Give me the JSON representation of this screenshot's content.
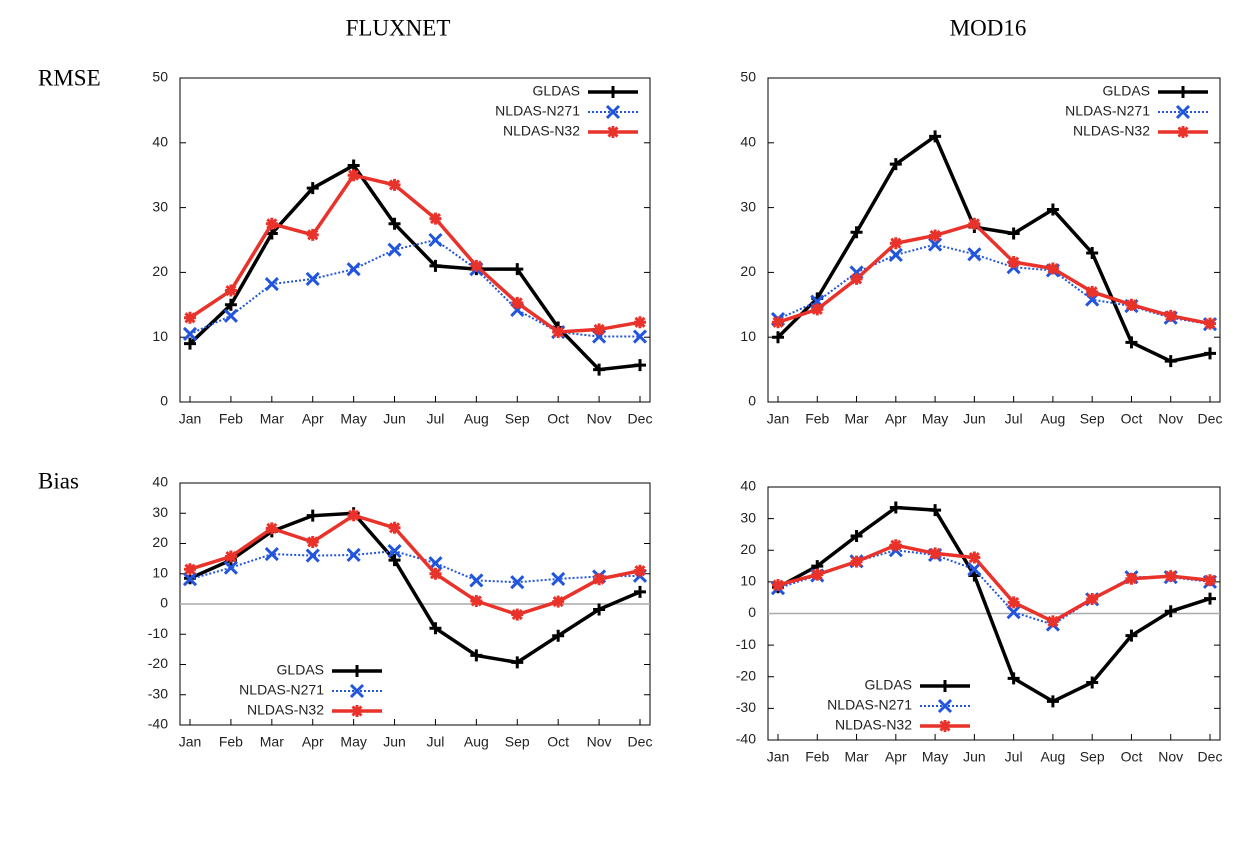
{
  "columns": [
    "FLUXNET",
    "MOD16"
  ],
  "rows": [
    "RMSE",
    "Bias"
  ],
  "chart_data": [
    {
      "type": "line",
      "categories": [
        "Jan",
        "Feb",
        "Mar",
        "Apr",
        "May",
        "Jun",
        "Jul",
        "Aug",
        "Sep",
        "Oct",
        "Nov",
        "Dec"
      ],
      "ylim": [
        0,
        50
      ],
      "yticks": [
        0,
        10,
        20,
        30,
        40,
        50
      ],
      "legend": "upper right",
      "zero_line": false,
      "series": [
        {
          "name": "GLDAS",
          "color": "#000000",
          "marker": "plus",
          "linestyle": "solid",
          "values": [
            9,
            15,
            26,
            33,
            36.5,
            27.5,
            21,
            20.5,
            20.5,
            11.5,
            5,
            5.7
          ]
        },
        {
          "name": "NLDAS-N271",
          "color": "#2255dd",
          "marker": "cross",
          "linestyle": "dotted",
          "values": [
            10.5,
            13.3,
            18.2,
            19,
            20.5,
            23.5,
            25,
            20.5,
            14.2,
            10.8,
            10.1,
            10.1
          ]
        },
        {
          "name": "NLDAS-N32",
          "color": "#e8322a",
          "marker": "star",
          "linestyle": "solid",
          "values": [
            13,
            17.2,
            27.5,
            25.8,
            35,
            33.5,
            28.3,
            21,
            15.3,
            10.8,
            11.2,
            12.3
          ]
        }
      ]
    },
    {
      "type": "line",
      "categories": [
        "Jan",
        "Feb",
        "Mar",
        "Apr",
        "May",
        "Jun",
        "Jul",
        "Aug",
        "Sep",
        "Oct",
        "Nov",
        "Dec"
      ],
      "ylim": [
        0,
        50
      ],
      "yticks": [
        0,
        10,
        20,
        30,
        40,
        50
      ],
      "legend": "upper right",
      "zero_line": false,
      "series": [
        {
          "name": "GLDAS",
          "color": "#000000",
          "marker": "plus",
          "linestyle": "solid",
          "values": [
            10,
            16,
            26.2,
            36.7,
            41,
            27,
            26,
            29.7,
            23,
            9.2,
            6.3,
            7.5
          ]
        },
        {
          "name": "NLDAS-N271",
          "color": "#2255dd",
          "marker": "cross",
          "linestyle": "dotted",
          "values": [
            12.8,
            15.5,
            20,
            22.7,
            24.3,
            22.8,
            20.8,
            20.3,
            15.8,
            14.8,
            13,
            12
          ]
        },
        {
          "name": "NLDAS-N32",
          "color": "#e8322a",
          "marker": "star",
          "linestyle": "solid",
          "values": [
            12.3,
            14.3,
            19,
            24.5,
            25.7,
            27.5,
            21.6,
            20.6,
            17,
            15,
            13.3,
            12.1
          ]
        }
      ]
    },
    {
      "type": "line",
      "categories": [
        "Jan",
        "Feb",
        "Mar",
        "Apr",
        "May",
        "Jun",
        "Jul",
        "Aug",
        "Sep",
        "Oct",
        "Nov",
        "Dec"
      ],
      "ylim": [
        -40,
        40
      ],
      "yticks": [
        -40,
        -30,
        -20,
        -10,
        0,
        10,
        20,
        30,
        40
      ],
      "legend": "lower left",
      "zero_line": true,
      "series": [
        {
          "name": "GLDAS",
          "color": "#000000",
          "marker": "plus",
          "linestyle": "solid",
          "values": [
            8.5,
            14.5,
            24,
            29.2,
            30,
            14.5,
            -8,
            -17,
            -19.3,
            -10.5,
            -1.8,
            4
          ]
        },
        {
          "name": "NLDAS-N271",
          "color": "#2255dd",
          "marker": "cross",
          "linestyle": "dotted",
          "values": [
            8.2,
            12,
            16.5,
            16,
            16.2,
            17.5,
            13.5,
            7.8,
            7.2,
            8.3,
            9.1,
            9.3
          ]
        },
        {
          "name": "NLDAS-N32",
          "color": "#e8322a",
          "marker": "star",
          "linestyle": "solid",
          "values": [
            11.5,
            15.7,
            25,
            20.5,
            29.3,
            25.2,
            10,
            1,
            -3.5,
            0.8,
            8.2,
            11
          ]
        }
      ]
    },
    {
      "type": "line",
      "categories": [
        "Jan",
        "Feb",
        "Mar",
        "Apr",
        "May",
        "Jun",
        "Jul",
        "Aug",
        "Sep",
        "Oct",
        "Nov",
        "Dec"
      ],
      "ylim": [
        -40,
        40
      ],
      "yticks": [
        -40,
        -30,
        -20,
        -10,
        0,
        10,
        20,
        30,
        40
      ],
      "legend": "lower left",
      "zero_line": true,
      "series": [
        {
          "name": "GLDAS",
          "color": "#000000",
          "marker": "plus",
          "linestyle": "solid",
          "values": [
            8.3,
            15,
            24.5,
            33.5,
            32.7,
            12,
            -20.5,
            -27.8,
            -21.8,
            -7,
            0.7,
            4.7
          ]
        },
        {
          "name": "NLDAS-N271",
          "color": "#2255dd",
          "marker": "cross",
          "linestyle": "dotted",
          "values": [
            8,
            12,
            16.5,
            20,
            18.5,
            14,
            0.4,
            -3.5,
            4.5,
            11.5,
            11.5,
            10
          ]
        },
        {
          "name": "NLDAS-N32",
          "color": "#e8322a",
          "marker": "star",
          "linestyle": "solid",
          "values": [
            9,
            12.3,
            16.4,
            21.6,
            19,
            17.7,
            3.5,
            -2.5,
            4.6,
            11,
            11.8,
            10.5
          ]
        }
      ]
    }
  ]
}
